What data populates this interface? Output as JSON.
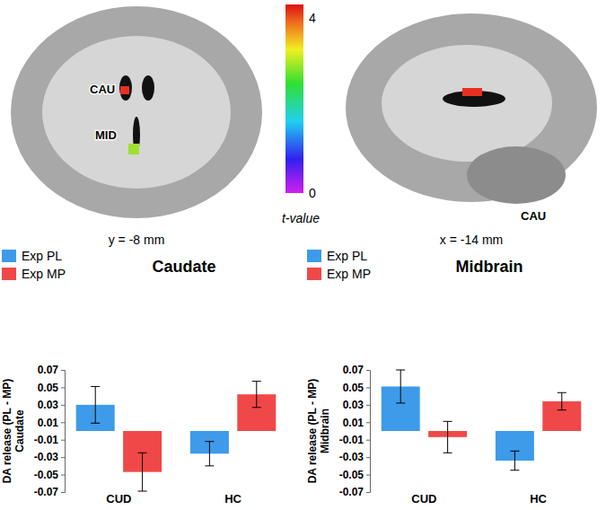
{
  "chart_data": [
    {
      "type": "bar",
      "title": "Caudate",
      "y_label": [
        "DA release (PL - MP)",
        "Caudate"
      ],
      "categories": [
        "CUD",
        "HC"
      ],
      "series": [
        {
          "name": "Exp PL",
          "color": "#3d9be9",
          "values": [
            0.03,
            -0.026
          ],
          "errors": [
            0.021,
            0.014
          ]
        },
        {
          "name": "Exp MP",
          "color": "#f04848",
          "values": [
            -0.047,
            0.042
          ],
          "errors": [
            0.022,
            0.015
          ]
        }
      ],
      "ylim": [
        -0.07,
        0.07
      ],
      "yticks": [
        -0.07,
        -0.05,
        -0.03,
        -0.01,
        0.01,
        0.03,
        0.05,
        0.07
      ],
      "legend": "top-left"
    },
    {
      "type": "bar",
      "title": "Midbrain",
      "y_label": [
        "DA release (PL - MP)",
        "Midbrain"
      ],
      "categories": [
        "CUD",
        "HC"
      ],
      "series": [
        {
          "name": "Exp PL",
          "color": "#3d9be9",
          "values": [
            0.051,
            -0.034
          ],
          "errors": [
            0.019,
            0.011
          ]
        },
        {
          "name": "Exp MP",
          "color": "#f04848",
          "values": [
            -0.007,
            0.034
          ],
          "errors": [
            0.018,
            0.01
          ]
        }
      ],
      "ylim": [
        -0.07,
        0.07
      ],
      "yticks": [
        -0.07,
        -0.05,
        -0.03,
        -0.01,
        0.01,
        0.03,
        0.05,
        0.07
      ],
      "legend": "top-left"
    }
  ],
  "brain_figure": {
    "coronal": {
      "labels": [
        "CAU",
        "MID"
      ],
      "caption": "y = -8 mm"
    },
    "sagittal": {
      "labels": [
        "CAU"
      ],
      "caption": "x = -14 mm"
    },
    "colorbar": {
      "title": "t-value",
      "range": [
        0,
        4.3
      ],
      "ticks": [
        0,
        4
      ]
    }
  }
}
